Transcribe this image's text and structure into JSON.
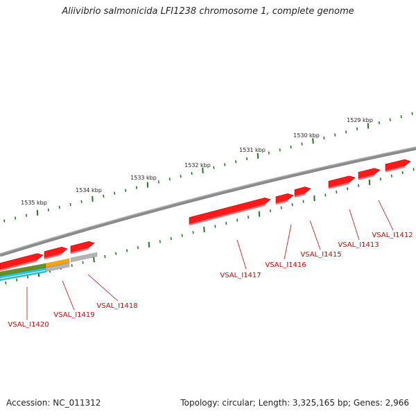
{
  "title": "Aliivibrio salmonicida LFI1238 chromosome 1, complete genome",
  "accession_text": "Accession: NC_011312",
  "summary_text": "Topology: circular; Length: 3,325,165 bp; Genes: 2,966",
  "colors": {
    "backbone": "#8a8a8a",
    "gene": "#ff1a1a",
    "gene_label": "#d40000",
    "tick": "#1f7a1f",
    "track_olive": "#6b8e23",
    "track_orange": "#ffa500",
    "track_gray": "#b4b4b4",
    "track_cyan": "#22c8d8"
  },
  "scale_labels": [
    "1529 kbp",
    "1530 kbp",
    "1531 kbp",
    "1532 kbp",
    "1533 kbp",
    "1534 kbp",
    "1535 kbp"
  ],
  "genes": [
    {
      "label": "VSAL_I1412",
      "strand": "forward"
    },
    {
      "label": "VSAL_I1413",
      "strand": "forward"
    },
    {
      "label": "VSAL_I1415",
      "strand": "forward"
    },
    {
      "label": "VSAL_I1416",
      "strand": "forward"
    },
    {
      "label": "VSAL_I1417",
      "strand": "forward"
    },
    {
      "label": "VSAL_I1418",
      "strand": "forward"
    },
    {
      "label": "VSAL_I1419",
      "strand": "forward"
    },
    {
      "label": "VSAL_I1420",
      "strand": "forward"
    }
  ]
}
